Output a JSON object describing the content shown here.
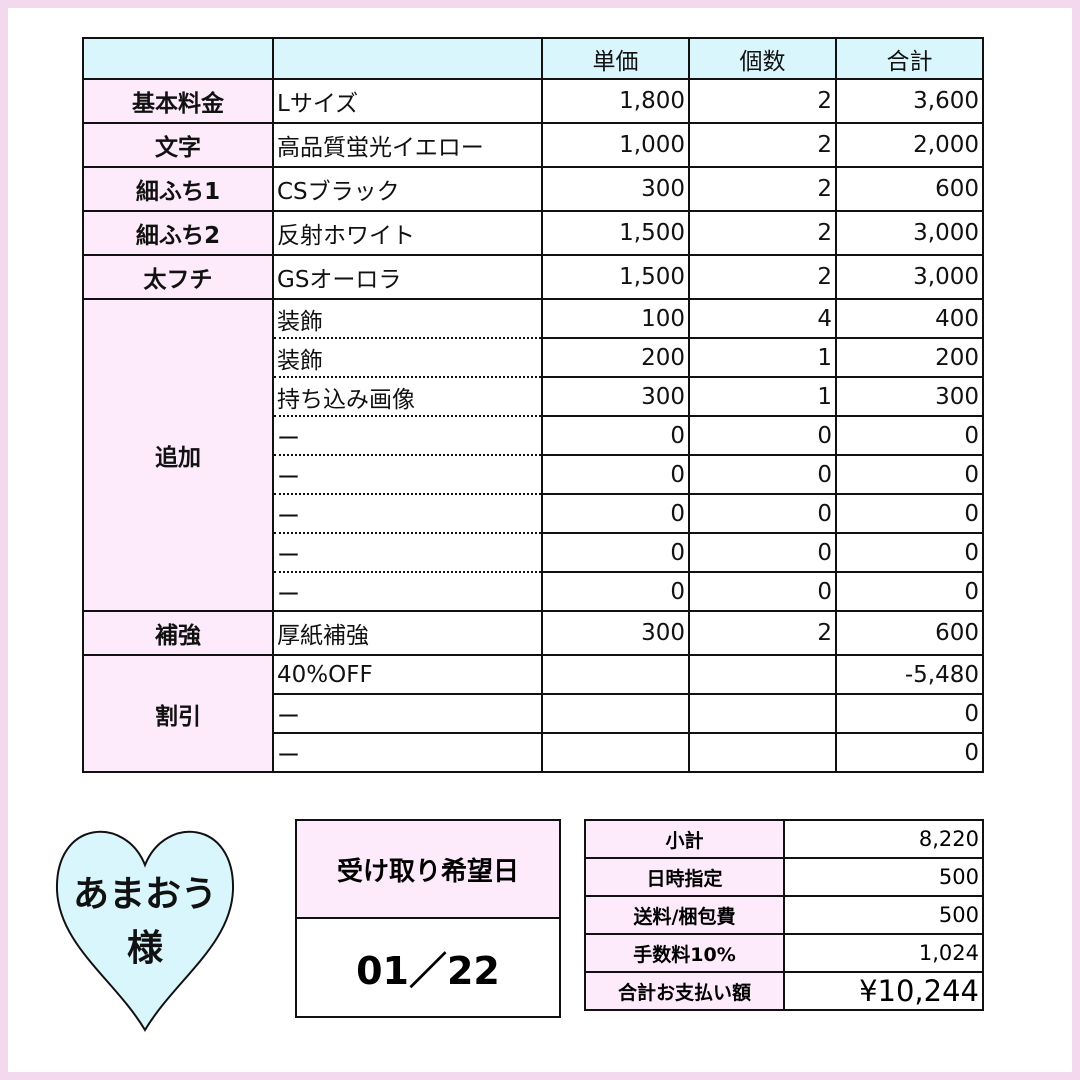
{
  "colors": {
    "header_bg": "#d9f6fc",
    "label_bg": "#fdeafa",
    "frame": "#f4d8ee"
  },
  "table": {
    "headers": [
      "",
      "",
      "単価",
      "個数",
      "合計"
    ],
    "rows": [
      {
        "category": "基本料金",
        "items": [
          {
            "name": "Lサイズ",
            "price": "1,800",
            "qty": "2",
            "total": "3,600"
          }
        ]
      },
      {
        "category": "文字",
        "items": [
          {
            "name": "高品質蛍光イエロー",
            "price": "1,000",
            "qty": "2",
            "total": "2,000"
          }
        ]
      },
      {
        "category": "細ふち1",
        "items": [
          {
            "name": "CSブラック",
            "price": "300",
            "qty": "2",
            "total": "600"
          }
        ]
      },
      {
        "category": "細ふち2",
        "items": [
          {
            "name": "反射ホワイト",
            "price": "1,500",
            "qty": "2",
            "total": "3,000"
          }
        ]
      },
      {
        "category": "太フチ",
        "items": [
          {
            "name": "GSオーロラ",
            "price": "1,500",
            "qty": "2",
            "total": "3,000"
          }
        ]
      },
      {
        "category": "追加",
        "items": [
          {
            "name": "装飾",
            "price": "100",
            "qty": "4",
            "total": "400"
          },
          {
            "name": "装飾",
            "price": "200",
            "qty": "1",
            "total": "200"
          },
          {
            "name": "持ち込み画像",
            "price": "300",
            "qty": "1",
            "total": "300"
          },
          {
            "name": "ー",
            "price": "0",
            "qty": "0",
            "total": "0"
          },
          {
            "name": "ー",
            "price": "0",
            "qty": "0",
            "total": "0"
          },
          {
            "name": "ー",
            "price": "0",
            "qty": "0",
            "total": "0"
          },
          {
            "name": "ー",
            "price": "0",
            "qty": "0",
            "total": "0"
          },
          {
            "name": "ー",
            "price": "0",
            "qty": "0",
            "total": "0"
          }
        ]
      },
      {
        "category": "補強",
        "items": [
          {
            "name": "厚紙補強",
            "price": "300",
            "qty": "2",
            "total": "600"
          }
        ]
      },
      {
        "category": "割引",
        "items": [
          {
            "name": "40%OFF",
            "price": "",
            "qty": "",
            "total": "-5,480"
          },
          {
            "name": "ー",
            "price": "",
            "qty": "",
            "total": "0"
          },
          {
            "name": "ー",
            "price": "",
            "qty": "",
            "total": "0"
          }
        ]
      }
    ]
  },
  "customer": {
    "name": "あまおう",
    "honorific": "様"
  },
  "pickup": {
    "label": "受け取り希望日",
    "date": "01／22"
  },
  "summary": [
    {
      "label": "小計",
      "value": "8,220"
    },
    {
      "label": "日時指定",
      "value": "500"
    },
    {
      "label": "送料/梱包費",
      "value": "500"
    },
    {
      "label": "手数料10%",
      "value": "1,024"
    },
    {
      "label": "合計お支払い額",
      "value": "¥10,244"
    }
  ]
}
